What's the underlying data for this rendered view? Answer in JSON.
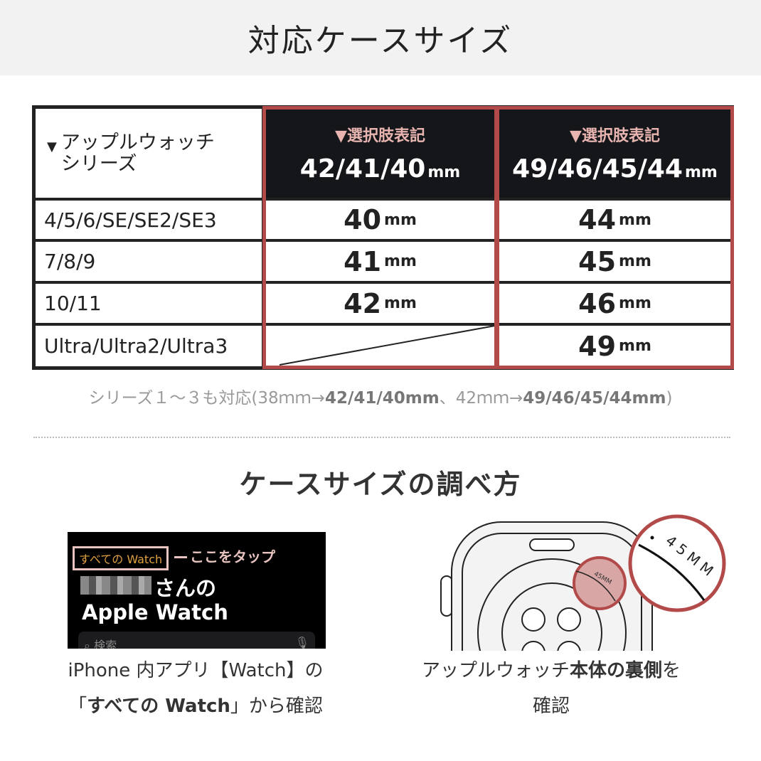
{
  "title": "対応ケースサイズ",
  "table": {
    "corner": {
      "icon": "triangle-down-icon",
      "line1": "アップルウォッチ",
      "line2": "シリーズ"
    },
    "columns": [
      {
        "selector_label": "▼選択肢表記",
        "size": "42/41/40",
        "unit": "mm"
      },
      {
        "selector_label": "▼選択肢表記",
        "size": "49/46/45/44",
        "unit": "mm"
      }
    ],
    "rows": [
      {
        "series": "4/5/6/SE/SE2/SE3",
        "small": "40",
        "large": "44"
      },
      {
        "series": "7/8/9",
        "small": "41",
        "large": "45"
      },
      {
        "series": "10/11",
        "small": "42",
        "large": "46"
      },
      {
        "series": "Ultra/Ultra2/Ultra3",
        "small": "",
        "large": "49"
      }
    ],
    "unit": "mm",
    "highlight_color": "#b34a4a",
    "header_bg": "#14161a"
  },
  "note": {
    "prefix": "シリーズ１〜３も対応(38ｍｍ→",
    "a": "42/41/40mm",
    "mid": "、42ｍｍ→",
    "b": "49/46/45/44mm",
    "suffix": ")"
  },
  "howto": {
    "title": "ケースサイズの調べ方",
    "phone": {
      "all_watch": "すべての Watch",
      "tap_here": "ここをタップ",
      "name_suffix": "さんの",
      "apple_watch": "Apple Watch",
      "search_placeholder": "検索"
    },
    "left_caption": {
      "l1": "iPhone 内アプリ【Watch】の",
      "l2a": "「",
      "l2b": "すべての Watch",
      "l2c": "」から確認"
    },
    "watch": {
      "engraving": "45MM"
    },
    "right_caption": {
      "l1a": "アップルウォッチ",
      "l1b": "本体の裏側",
      "l1c": "を",
      "l2": "確認"
    }
  }
}
